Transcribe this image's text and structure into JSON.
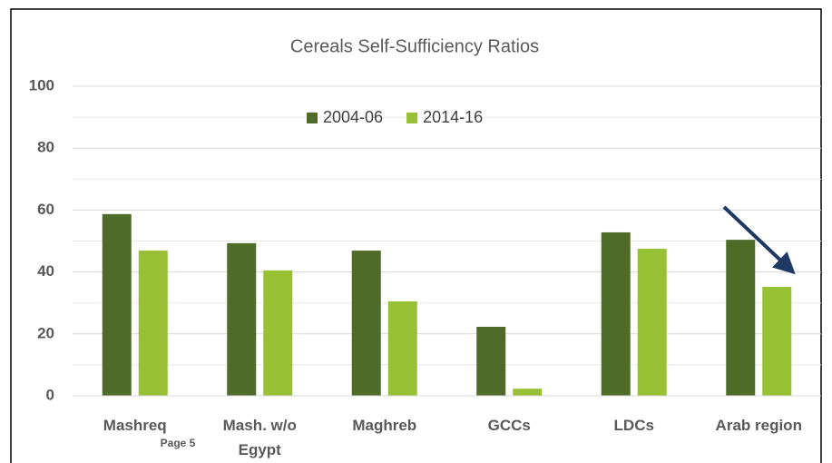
{
  "chart_data": {
    "type": "bar",
    "title": "Cereals Self-Sufficiency Ratios",
    "categories": [
      "Mashreq",
      "Mash. w/o Egypt",
      "Maghreb",
      "GCCs",
      "LDCs",
      "Arab region"
    ],
    "series": [
      {
        "name": "2004-06",
        "color": "#4e6b27",
        "values": [
          58.7,
          49.3,
          46.9,
          22.3,
          52.8,
          50.4
        ]
      },
      {
        "name": "2014-16",
        "color": "#97c034",
        "values": [
          46.9,
          40.5,
          30.5,
          2.3,
          47.5,
          35.2
        ]
      }
    ],
    "ylim": [
      0,
      100
    ],
    "yticks": [
      0,
      20,
      40,
      60,
      80,
      100
    ],
    "grid": true,
    "minor_grid": true,
    "legend": "top",
    "annotations": [
      "Page 5"
    ]
  }
}
